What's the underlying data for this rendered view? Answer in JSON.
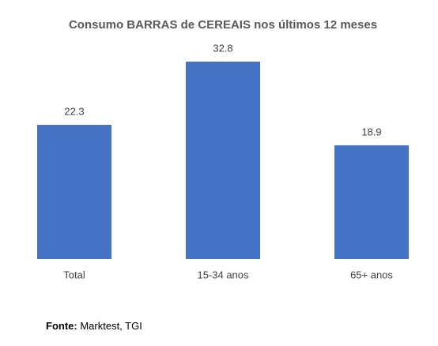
{
  "chart_data": {
    "type": "bar",
    "title": "Consumo BARRAS de CEREAIS nos últimos 12 meses",
    "categories": [
      "Total",
      "15-34 anos",
      "65+ anos"
    ],
    "values": [
      22.3,
      32.8,
      18.9
    ],
    "color": "#4472c4",
    "source_label": "Fonte:",
    "source": "Marktest, TGI"
  }
}
